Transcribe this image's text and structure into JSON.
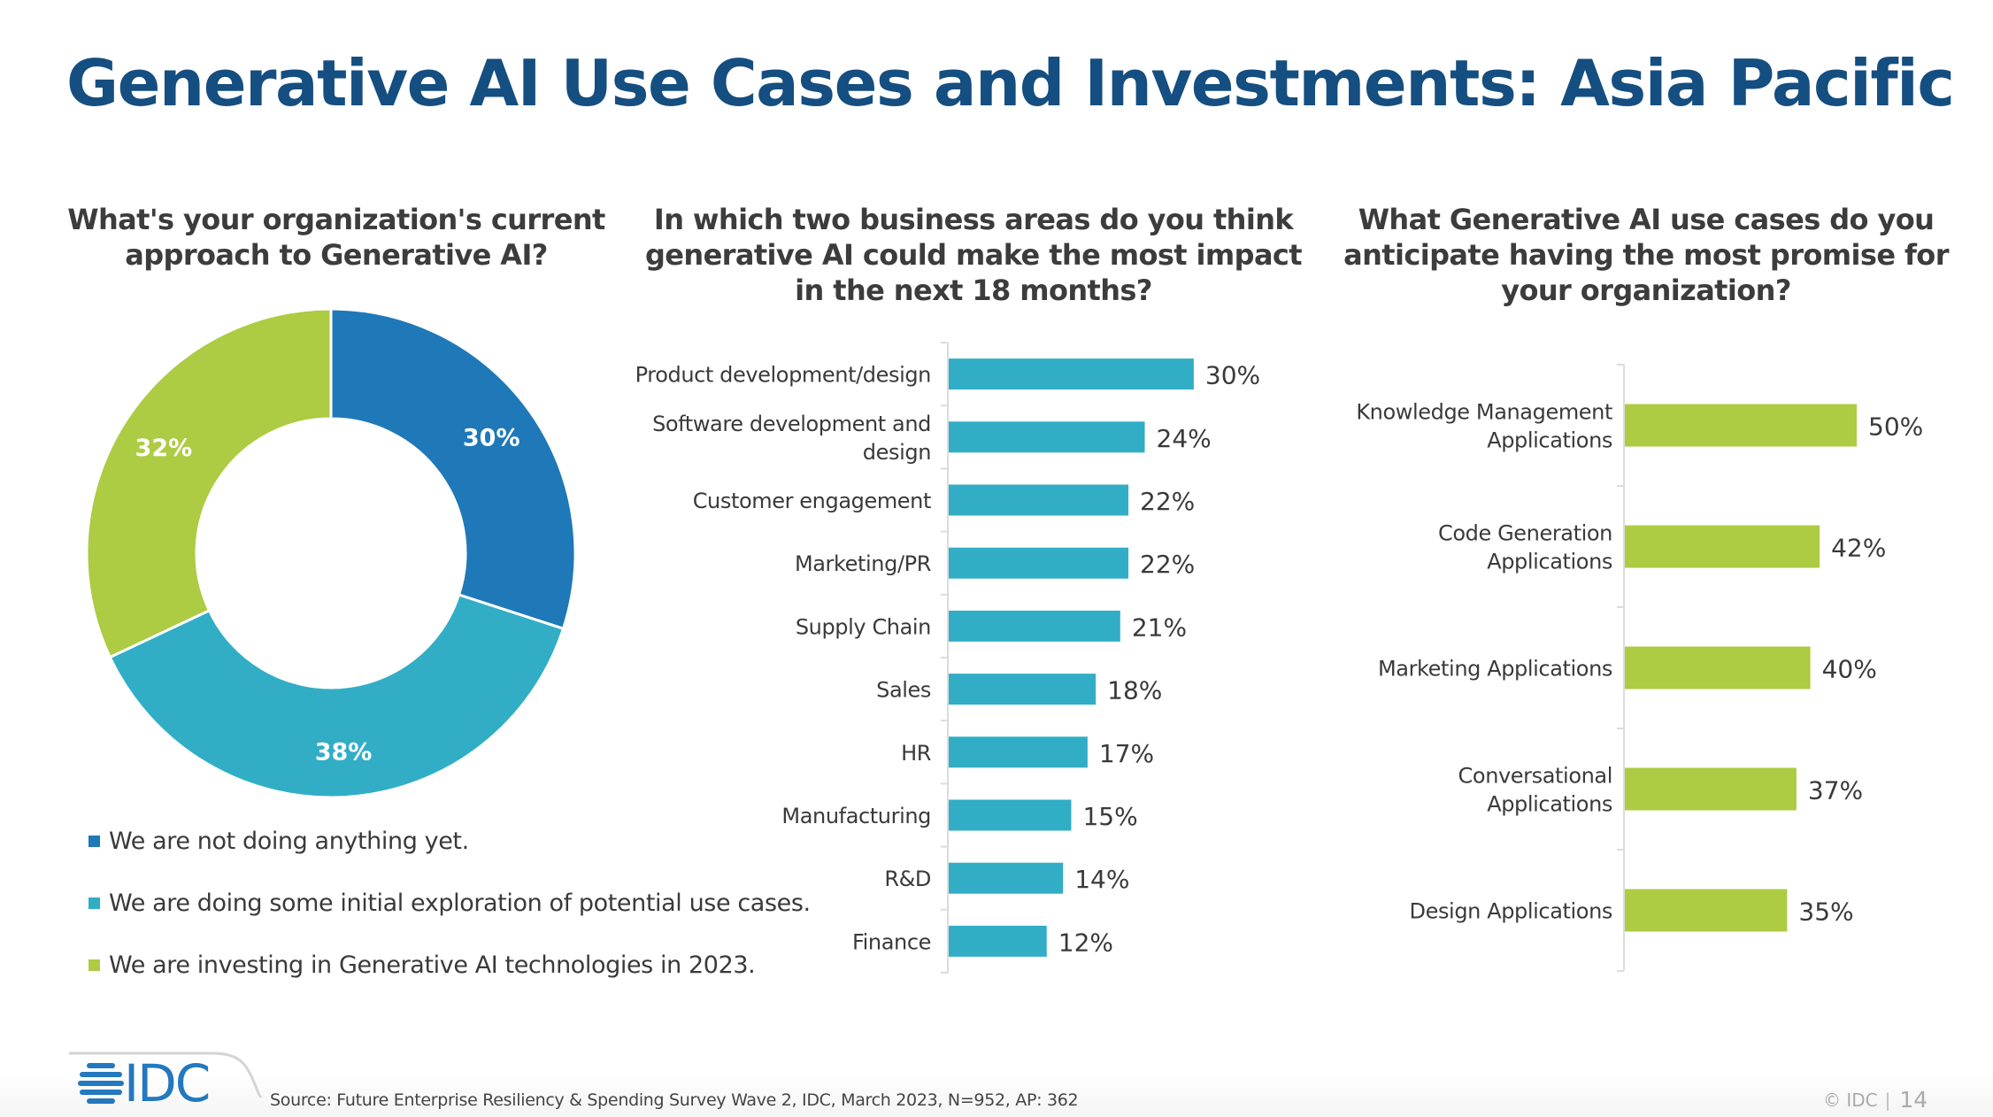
{
  "slide": {
    "title": "Generative AI Use Cases and Investments: Asia Pacific",
    "source": "Source: Future Enterprise Resiliency & Spending Survey Wave 2, IDC, March 2023, N=952, AP: 362",
    "copyright": "© IDC",
    "page_number": "14",
    "logo_text": "IDC",
    "colors": {
      "title": "#154e80",
      "blue": "#1f78b8",
      "teal": "#31aec6",
      "green": "#adcb43"
    }
  },
  "chart_data": [
    {
      "type": "pie",
      "variant": "donut",
      "title": "What's your organization's current approach to Generative AI?",
      "categories": [
        "We are not doing anything yet.",
        "We are doing some initial exploration of potential use cases.",
        "We are investing in Generative AI technologies in 2023."
      ],
      "values": [
        30,
        38,
        32
      ],
      "labels": [
        "30%",
        "38%",
        "32%"
      ],
      "colors": [
        "#1f78b8",
        "#31aec6",
        "#adcb43"
      ],
      "legend_position": "bottom-left"
    },
    {
      "type": "bar",
      "orientation": "horizontal",
      "title": "In which two business areas do you think generative AI could make the most impact in the next 18 months?",
      "categories": [
        "Product development/design",
        "Software development and design",
        "Customer engagement",
        "Marketing/PR",
        "Supply Chain",
        "Sales",
        "HR",
        "Manufacturing",
        "R&D",
        "Finance"
      ],
      "values": [
        30,
        24,
        22,
        22,
        21,
        18,
        17,
        15,
        14,
        12
      ],
      "labels": [
        "30%",
        "24%",
        "22%",
        "22%",
        "21%",
        "18%",
        "17%",
        "15%",
        "14%",
        "12%"
      ],
      "color": "#31aec6",
      "unit": "%",
      "grid": false
    },
    {
      "type": "bar",
      "orientation": "horizontal",
      "title": "What Generative AI use cases do you anticipate having the most promise for your organization?",
      "categories": [
        "Knowledge Management Applications",
        "Code Generation Applications",
        "Marketing Applications",
        "Conversational Applications",
        "Design Applications"
      ],
      "values": [
        50,
        42,
        40,
        37,
        35
      ],
      "labels": [
        "50%",
        "42%",
        "40%",
        "37%",
        "35%"
      ],
      "color": "#adcb43",
      "unit": "%",
      "grid": false
    }
  ],
  "category_lines": [
    [
      [
        "Product development/design"
      ],
      [
        "Software development and",
        "design"
      ],
      [
        "Customer engagement"
      ],
      [
        "Marketing/PR"
      ],
      [
        "Supply Chain"
      ],
      [
        "Sales"
      ],
      [
        "HR"
      ],
      [
        "Manufacturing"
      ],
      [
        "R&D"
      ],
      [
        "Finance"
      ]
    ],
    [
      [
        "Knowledge Management",
        "Applications"
      ],
      [
        "Code Generation",
        "Applications"
      ],
      [
        "Marketing Applications"
      ],
      [
        "Conversational",
        "Applications"
      ],
      [
        "Design Applications"
      ]
    ]
  ]
}
